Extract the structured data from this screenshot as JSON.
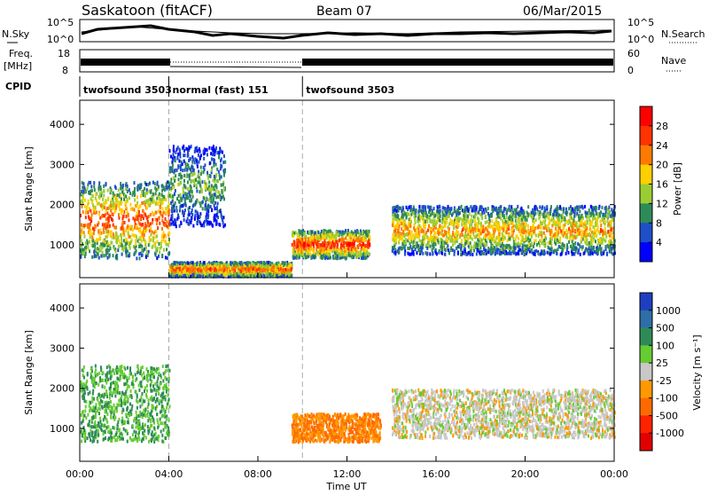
{
  "header": {
    "title": "Saskatoon (fitACF)",
    "beam": "Beam 07",
    "date": "06/Mar/2015"
  },
  "noise_panel": {
    "left_label": "N.Sky",
    "right_label": "N.Search",
    "left_ticks": [
      "10^5",
      "10^0"
    ],
    "right_ticks": [
      "10^5",
      "10^0"
    ]
  },
  "freq_panel": {
    "left_label_1": "Freq.",
    "left_label_2": "[MHz]",
    "right_label": "Nave",
    "left_ticks": [
      "18",
      "8"
    ],
    "right_ticks": [
      "60",
      "0"
    ]
  },
  "cpid": {
    "label": "CPID",
    "segments": [
      {
        "name": "twofsound 3503",
        "start_hour": 0,
        "end_hour": 4
      },
      {
        "name": "normal (fast) 151",
        "start_hour": 4,
        "end_hour": 10
      },
      {
        "name": "twofsound 3503",
        "start_hour": 10,
        "end_hour": 24
      }
    ]
  },
  "power_panel": {
    "ylabel": "Slant Range [km]",
    "yticks": [
      "4000",
      "3000",
      "2000",
      "1000"
    ],
    "colorbar_label": "Power [dB]",
    "colorbar_ticks": [
      "28",
      "24",
      "20",
      "16",
      "12",
      "8",
      "4"
    ],
    "colors": [
      "#ff0000",
      "#ff3300",
      "#ff7a00",
      "#ffd000",
      "#9acd32",
      "#2e8b57",
      "#1f4fc8",
      "#0000ff"
    ]
  },
  "velocity_panel": {
    "ylabel": "Slant Range [km]",
    "yticks": [
      "4000",
      "3000",
      "2000",
      "1000"
    ],
    "colorbar_label": "Velocity [m s⁻¹]",
    "colorbar_ticks": [
      "1000",
      "500",
      "100",
      "25",
      "-25",
      "-100",
      "-500",
      "-1000"
    ],
    "colors": [
      "#1e3fbf",
      "#2e6fa8",
      "#2e8b57",
      "#66cc33",
      "#c8c8c8",
      "#ff9900",
      "#ff6a00",
      "#ff2200",
      "#e00000"
    ]
  },
  "x_axis": {
    "label": "Time UT",
    "ticks": [
      "00:00",
      "04:00",
      "08:00",
      "12:00",
      "16:00",
      "20:00",
      "00:00"
    ]
  },
  "chart_data": {
    "type": "heatmap",
    "title": "Saskatoon (fitACF)",
    "subtitle": "Beam 07",
    "date": "06/Mar/2015",
    "xlabel": "Time UT",
    "xlim_hours": [
      0,
      24
    ],
    "ylabel": "Slant Range [km]",
    "ylim": [
      180,
      4600
    ],
    "panels": [
      {
        "name": "Power",
        "units": "dB",
        "colorbar_range": [
          0,
          30
        ],
        "features": [
          {
            "label": "broad echo band",
            "t_start": 0,
            "t_end": 4,
            "range_low": 700,
            "range_high": 2600,
            "peak_db": 28
          },
          {
            "label": "rising band",
            "t_start": 4,
            "t_end": 6.5,
            "range_low": 1500,
            "range_high": 3500,
            "peak_db": 16
          },
          {
            "label": "near-range band",
            "t_start": 4,
            "t_end": 9.5,
            "range_low": 250,
            "range_high": 600,
            "peak_db": 28
          },
          {
            "label": "strong patch",
            "t_start": 9.5,
            "t_end": 13,
            "range_low": 700,
            "range_high": 1400,
            "peak_db": 30
          },
          {
            "label": "persistent band",
            "t_start": 14,
            "t_end": 24,
            "range_low": 800,
            "range_high": 2000,
            "peak_db": 24
          }
        ]
      },
      {
        "name": "Velocity",
        "units": "m s^-1",
        "colorbar_range": [
          -1000,
          1000
        ],
        "features": [
          {
            "label": "green (positive) echoes",
            "t_start": 0,
            "t_end": 4,
            "range_low": 700,
            "range_high": 2600,
            "typical_velocity": 100
          },
          {
            "label": "orange (negative) patch",
            "t_start": 9.5,
            "t_end": 13.5,
            "range_low": 700,
            "range_high": 1400,
            "typical_velocity": -100
          },
          {
            "label": "grey low-velocity band",
            "t_start": 14,
            "t_end": 24,
            "range_low": 800,
            "range_high": 2000,
            "typical_velocity": 0
          }
        ]
      }
    ]
  }
}
